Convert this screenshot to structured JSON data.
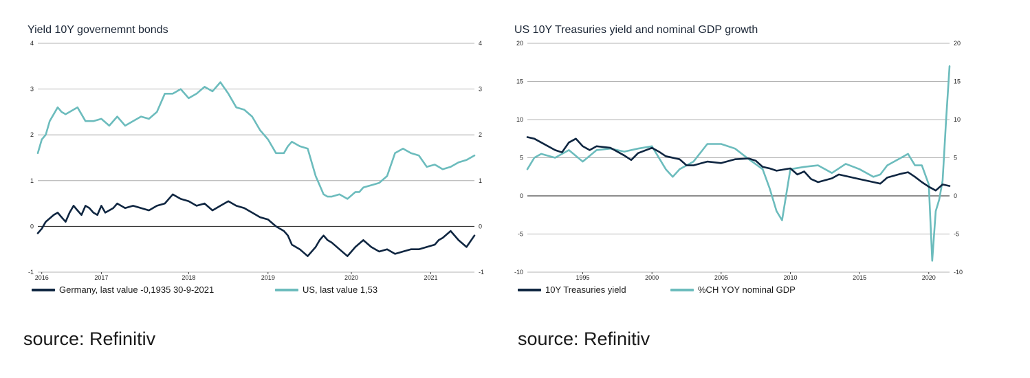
{
  "colors": {
    "dark": "#0f2641",
    "teal": "#6cbcbd",
    "grid": "#9a9a9a",
    "zero": "#1a1a1a"
  },
  "left": {
    "title": "Yield 10Y governemnt bonds",
    "legend": [
      "Germany, last value -0,1935 30-9-2021",
      "US, last value 1,53"
    ],
    "source": "source: Refinitiv"
  },
  "right": {
    "title": "US 10Y Treasuries yield and nominal GDP growth",
    "legend": [
      "10Y Treasuries yield",
      "%CH YOY nominal GDP"
    ],
    "source": "source: Refinitiv"
  },
  "chart_data": [
    {
      "type": "line",
      "title": "Yield 10Y governemnt bonds",
      "xlim": [
        2016.0,
        2021.5
      ],
      "ylim": [
        -1,
        4
      ],
      "yticks": [
        -1,
        0,
        1,
        2,
        3,
        4
      ],
      "xticks": [
        {
          "label": "2016",
          "x": 2016.05
        },
        {
          "label": "2017",
          "x": 2016.8
        },
        {
          "label": "2018",
          "x": 2017.9
        },
        {
          "label": "2019",
          "x": 2018.9
        },
        {
          "label": "2020",
          "x": 2019.95
        },
        {
          "label": "2021",
          "x": 2020.95
        }
      ],
      "series": [
        {
          "name": "Germany, last value -0,1935 30-9-2021",
          "color": "dark",
          "x": [
            2016.0,
            2016.05,
            2016.1,
            2016.2,
            2016.25,
            2016.3,
            2016.35,
            2016.4,
            2016.45,
            2016.5,
            2016.55,
            2016.6,
            2016.65,
            2016.7,
            2016.75,
            2016.8,
            2016.85,
            2016.9,
            2016.95,
            2017.0,
            2017.1,
            2017.2,
            2017.3,
            2017.4,
            2017.5,
            2017.6,
            2017.7,
            2017.75,
            2017.8,
            2017.9,
            2018.0,
            2018.1,
            2018.2,
            2018.25,
            2018.3,
            2018.4,
            2018.5,
            2018.6,
            2018.7,
            2018.8,
            2018.9,
            2019.0,
            2019.1,
            2019.15,
            2019.2,
            2019.3,
            2019.4,
            2019.5,
            2019.55,
            2019.6,
            2019.65,
            2019.7,
            2019.8,
            2019.9,
            2020.0,
            2020.1,
            2020.2,
            2020.3,
            2020.4,
            2020.5,
            2020.6,
            2020.7,
            2020.8,
            2020.9,
            2021.0,
            2021.05,
            2021.1,
            2021.2,
            2021.3,
            2021.4,
            2021.5
          ],
          "y": [
            -0.15,
            -0.05,
            0.1,
            0.25,
            0.3,
            0.2,
            0.1,
            0.3,
            0.45,
            0.35,
            0.25,
            0.45,
            0.4,
            0.3,
            0.25,
            0.45,
            0.3,
            0.35,
            0.4,
            0.5,
            0.4,
            0.45,
            0.4,
            0.35,
            0.45,
            0.5,
            0.7,
            0.65,
            0.6,
            0.55,
            0.45,
            0.5,
            0.35,
            0.4,
            0.45,
            0.55,
            0.45,
            0.4,
            0.3,
            0.2,
            0.15,
            0.0,
            -0.1,
            -0.2,
            -0.4,
            -0.5,
            -0.65,
            -0.45,
            -0.3,
            -0.2,
            -0.3,
            -0.35,
            -0.5,
            -0.65,
            -0.45,
            -0.3,
            -0.45,
            -0.55,
            -0.5,
            -0.6,
            -0.55,
            -0.5,
            -0.5,
            -0.45,
            -0.4,
            -0.3,
            -0.25,
            -0.1,
            -0.3,
            -0.45,
            -0.2
          ]
        },
        {
          "name": "US, last value 1,53",
          "color": "teal",
          "x": [
            2016.0,
            2016.05,
            2016.1,
            2016.15,
            2016.2,
            2016.25,
            2016.3,
            2016.35,
            2016.4,
            2016.5,
            2016.6,
            2016.7,
            2016.8,
            2016.9,
            2017.0,
            2017.1,
            2017.2,
            2017.3,
            2017.4,
            2017.5,
            2017.6,
            2017.7,
            2017.8,
            2017.9,
            2018.0,
            2018.1,
            2018.2,
            2018.3,
            2018.4,
            2018.5,
            2018.6,
            2018.7,
            2018.8,
            2018.9,
            2019.0,
            2019.1,
            2019.15,
            2019.2,
            2019.3,
            2019.4,
            2019.5,
            2019.55,
            2019.6,
            2019.65,
            2019.7,
            2019.8,
            2019.9,
            2020.0,
            2020.05,
            2020.1,
            2020.2,
            2020.3,
            2020.4,
            2020.5,
            2020.6,
            2020.7,
            2020.8,
            2020.9,
            2021.0,
            2021.05,
            2021.1,
            2021.2,
            2021.3,
            2021.4,
            2021.5
          ],
          "y": [
            1.6,
            1.9,
            2.0,
            2.3,
            2.45,
            2.6,
            2.5,
            2.45,
            2.5,
            2.6,
            2.3,
            2.3,
            2.35,
            2.2,
            2.4,
            2.2,
            2.3,
            2.4,
            2.35,
            2.5,
            2.9,
            2.9,
            3.0,
            2.8,
            2.9,
            3.05,
            2.95,
            3.15,
            2.9,
            2.6,
            2.55,
            2.4,
            2.1,
            1.9,
            1.6,
            1.6,
            1.75,
            1.85,
            1.75,
            1.7,
            1.1,
            0.9,
            0.7,
            0.65,
            0.65,
            0.7,
            0.6,
            0.75,
            0.75,
            0.85,
            0.9,
            0.95,
            1.1,
            1.6,
            1.7,
            1.6,
            1.55,
            1.3,
            1.35,
            1.3,
            1.25,
            1.3,
            1.4,
            1.45,
            1.55
          ]
        }
      ]
    },
    {
      "type": "line",
      "title": "US 10Y Treasuries yield and nominal GDP growth",
      "xlim": [
        1991.0,
        2021.5
      ],
      "ylim": [
        -10,
        20
      ],
      "yticks": [
        -10,
        -5,
        0,
        5,
        10,
        15,
        20
      ],
      "xticks": [
        1995,
        2000,
        2005,
        2010,
        2015,
        2020
      ],
      "series": [
        {
          "name": "10Y Treasuries yield",
          "color": "dark",
          "x": [
            1991,
            1991.5,
            1992,
            1993,
            1993.5,
            1994,
            1994.5,
            1995,
            1995.5,
            1996,
            1997,
            1998,
            1998.5,
            1999,
            2000,
            2000.5,
            2001,
            2002,
            2002.5,
            2003,
            2004,
            2005,
            2006,
            2007,
            2007.5,
            2008,
            2008.5,
            2009,
            2010,
            2010.5,
            2011,
            2011.5,
            2012,
            2013,
            2013.5,
            2014,
            2015,
            2016,
            2016.5,
            2017,
            2018,
            2018.5,
            2019,
            2019.5,
            2020,
            2020.5,
            2021,
            2021.5
          ],
          "y": [
            7.7,
            7.5,
            7.0,
            6.0,
            5.7,
            7.0,
            7.5,
            6.5,
            6.0,
            6.5,
            6.3,
            5.3,
            4.7,
            5.6,
            6.3,
            5.8,
            5.2,
            4.8,
            4.0,
            4.0,
            4.5,
            4.3,
            4.8,
            4.9,
            4.6,
            3.8,
            3.6,
            3.3,
            3.6,
            2.8,
            3.2,
            2.2,
            1.8,
            2.3,
            2.8,
            2.6,
            2.2,
            1.8,
            1.6,
            2.4,
            2.9,
            3.1,
            2.5,
            1.8,
            1.2,
            0.7,
            1.5,
            1.3
          ]
        },
        {
          "name": "%CH YOY nominal GDP",
          "color": "teal",
          "x": [
            1991,
            1991.5,
            1992,
            1993,
            1994,
            1995,
            1996,
            1997,
            1998,
            1999,
            2000,
            2001,
            2001.5,
            2002,
            2003,
            2004,
            2005,
            2006,
            2007,
            2008,
            2008.5,
            2009,
            2009.4,
            2010,
            2011,
            2012,
            2013,
            2014,
            2015,
            2016,
            2016.5,
            2017,
            2018,
            2018.5,
            2019,
            2019.5,
            2020,
            2020.25,
            2020.5,
            2020.75,
            2021,
            2021.25,
            2021.5
          ],
          "y": [
            3.5,
            5.0,
            5.5,
            5.0,
            6.0,
            4.5,
            6.0,
            6.2,
            5.8,
            6.2,
            6.5,
            3.5,
            2.5,
            3.5,
            4.5,
            6.8,
            6.8,
            6.2,
            4.8,
            3.5,
            1.0,
            -2.0,
            -3.2,
            3.5,
            3.8,
            4.0,
            3.0,
            4.2,
            3.5,
            2.5,
            2.8,
            4.0,
            5.0,
            5.5,
            4.0,
            4.0,
            1.5,
            -8.5,
            -2.0,
            -0.5,
            2.0,
            10.0,
            17.0
          ]
        }
      ]
    }
  ]
}
